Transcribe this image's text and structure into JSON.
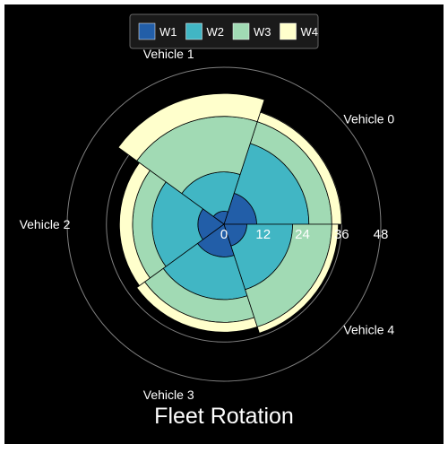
{
  "chart_data": {
    "type": "polar-stacked-bar",
    "title": "Fleet Rotation",
    "categories": [
      "Vehicle 0",
      "Vehicle 1",
      "Vehicle 2",
      "Vehicle 3",
      "Vehicle 4"
    ],
    "series": [
      {
        "name": "W1",
        "color": "#225ea8",
        "values": [
          10,
          4,
          8,
          10,
          7
        ]
      },
      {
        "name": "W2",
        "color": "#41b6c4",
        "values": [
          16,
          12,
          14,
          13,
          14
        ]
      },
      {
        "name": "W3",
        "color": "#a1dab4",
        "values": [
          7,
          17,
          6,
          7,
          12
        ]
      },
      {
        "name": "W4",
        "color": "#ffffcc",
        "values": [
          3,
          7,
          4,
          3,
          2
        ]
      }
    ],
    "r_ticks": [
      0,
      12,
      24,
      36,
      48
    ],
    "r_range": [
      0,
      48
    ],
    "grid": true,
    "legend": "top",
    "colors": {
      "background": "#000000",
      "text": "#ffffff",
      "grid": "#808080"
    }
  }
}
